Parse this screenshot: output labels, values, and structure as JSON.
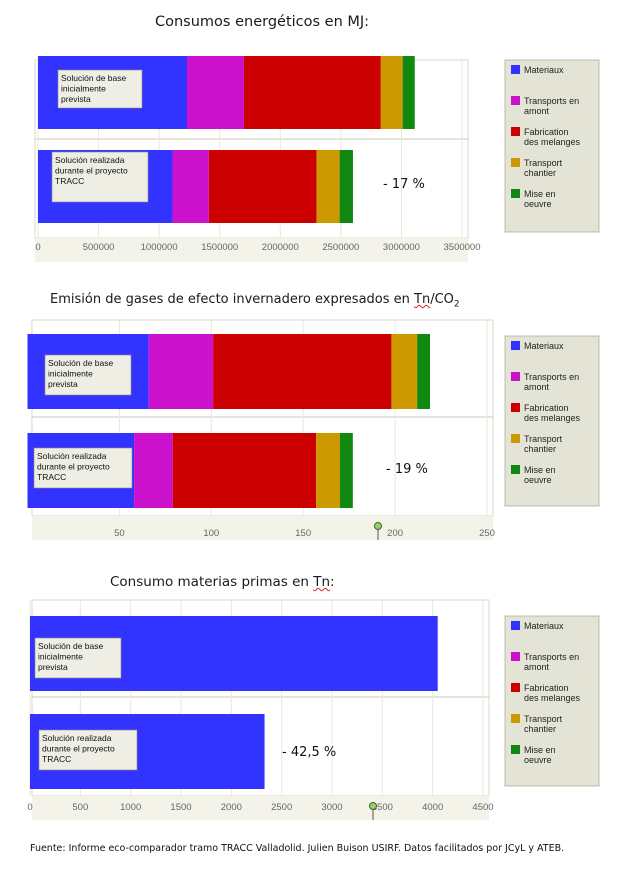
{
  "footer": "Fuente: Informe eco-comparador tramo  TRACC Valladolid.  Julien Buison USIRF.  Datos facilitados por JCyL y ATEB.",
  "legend_colors": {
    "Materiaux": "#3333ff",
    "Transports en amont": "#cc11cc",
    "Fabrication des melanges": "#cc0000",
    "Transport chantier": "#cc9900",
    "Mise en oeuvre": "#118811"
  },
  "chart_data": [
    {
      "type": "bar",
      "orientation": "horizontal",
      "stacked": true,
      "title": "Consumos energéticos en MJ:",
      "categories": [
        "Solución de base inicialmente prevista",
        "Solución realizada durante el proyecto TRACC"
      ],
      "series": [
        {
          "name": "Materiaux",
          "values": [
            1230000,
            1110000
          ]
        },
        {
          "name": "Transports en amont",
          "values": [
            470000,
            300000
          ]
        },
        {
          "name": "Fabrication des melanges",
          "values": [
            1130000,
            890000
          ]
        },
        {
          "name": "Transport chantier",
          "values": [
            180000,
            190000
          ]
        },
        {
          "name": "Mise en oeuvre",
          "values": [
            100000,
            110000
          ]
        }
      ],
      "annotation": "- 17 %",
      "xlim": [
        0,
        3500000
      ],
      "xticks": [
        "0",
        "500000",
        "1000000",
        "1500000",
        "2000000",
        "2500000",
        "3000000",
        "3500000"
      ],
      "legend": [
        "Materiaux",
        "Transports en amont",
        "Fabrication des melanges",
        "Transport chantier",
        "Mise en oeuvre"
      ]
    },
    {
      "type": "bar",
      "orientation": "horizontal",
      "stacked": true,
      "title_parts": [
        "Emisión de gases de efecto invernadero  expresados en ",
        "Tn",
        "/CO",
        "2"
      ],
      "categories": [
        "Solución de base inicialmente prevista",
        "Solución realizada durante el proyecto TRACC"
      ],
      "series": [
        {
          "name": "Materiaux",
          "values": [
            66,
            58
          ]
        },
        {
          "name": "Transports en amont",
          "values": [
            35,
            21
          ]
        },
        {
          "name": "Fabrication des melanges",
          "values": [
            97,
            78
          ]
        },
        {
          "name": "Transport chantier",
          "values": [
            14,
            13
          ]
        },
        {
          "name": "Mise en oeuvre",
          "values": [
            7,
            7
          ]
        }
      ],
      "annotation": "- 19 %",
      "xlim": [
        0,
        250
      ],
      "xticks": [
        "50",
        "100",
        "150",
        "200",
        "250"
      ],
      "legend": [
        "Materiaux",
        "Transports en amont",
        "Fabrication des melanges",
        "Transport chantier",
        "Mise en oeuvre"
      ]
    },
    {
      "type": "bar",
      "orientation": "horizontal",
      "stacked": true,
      "title_parts": [
        "Consumo materias primas  en ",
        "Tn",
        ":"
      ],
      "categories": [
        "Solución de base inicialmente prevista",
        "Solución realizada durante el proyecto TRACC"
      ],
      "series": [
        {
          "name": "Materiaux",
          "values": [
            4050,
            2330
          ]
        }
      ],
      "annotation": "- 42,5 %",
      "xlim": [
        0,
        4500
      ],
      "xticks": [
        "0",
        "500",
        "1000",
        "1500",
        "2000",
        "2500",
        "3000",
        "3500",
        "4000",
        "4500"
      ],
      "legend": [
        "Materiaux",
        "Transports en amont",
        "Fabrication des melanges",
        "Transport chantier",
        "Mise en oeuvre"
      ]
    }
  ]
}
